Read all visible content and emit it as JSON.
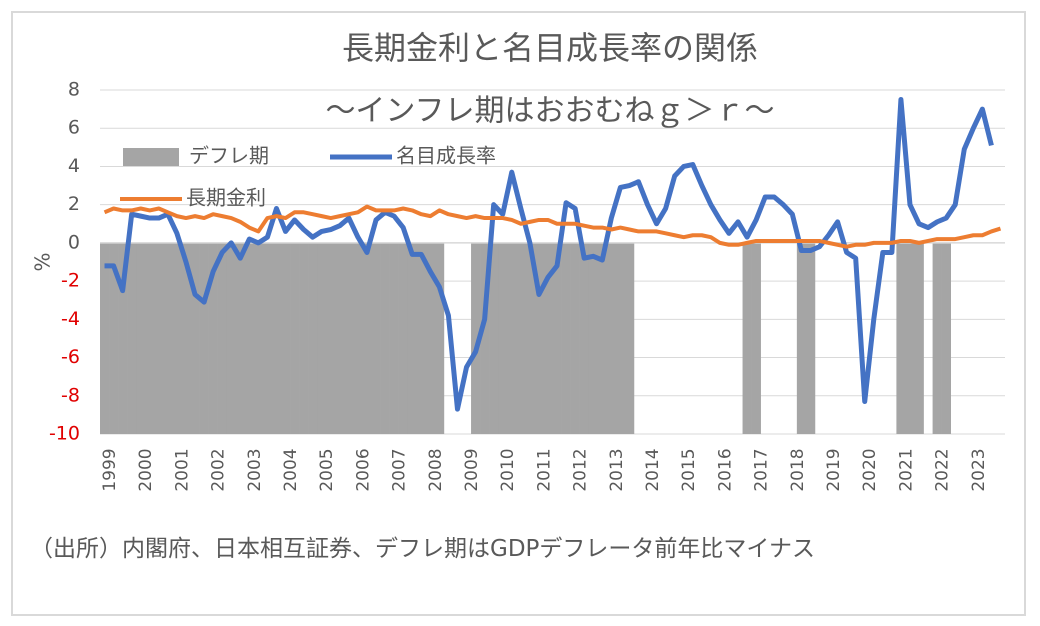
{
  "chart_data": {
    "type": "bar_line",
    "title": "長期金利と名目成長率の関係",
    "subtitle": "～インフレ期はおおむねｇ＞ｒ～",
    "y_label": "%",
    "note": "（出所）内閣府、日本相互証券、デフレ期はGDPデフレータ前年比マイナス",
    "categories": [
      "1999",
      null,
      null,
      null,
      "2000",
      null,
      null,
      null,
      "2001",
      null,
      null,
      null,
      "2002",
      null,
      null,
      null,
      "2003",
      null,
      null,
      null,
      "2004",
      null,
      null,
      null,
      "2005",
      null,
      null,
      null,
      "2006",
      null,
      null,
      null,
      "2007",
      null,
      null,
      null,
      "2008",
      null,
      null,
      null,
      "2009",
      null,
      null,
      null,
      "2010",
      null,
      null,
      null,
      "2011",
      null,
      null,
      null,
      "2012",
      null,
      null,
      null,
      "2013",
      null,
      null,
      null,
      "2014",
      null,
      null,
      null,
      "2015",
      null,
      null,
      null,
      "2016",
      null,
      null,
      null,
      "2017",
      null,
      null,
      null,
      "2018",
      null,
      null,
      null,
      "2019",
      null,
      null,
      null,
      "2020",
      null,
      null,
      null,
      "2021",
      null,
      null,
      null,
      "2022",
      null,
      null,
      null,
      "2023",
      null,
      null,
      null
    ],
    "series": [
      {
        "name": "デフレ期",
        "type": "bar",
        "color": "#a5a5a5",
        "values": [
          -10,
          -10,
          -10,
          -10,
          -10,
          -10,
          -10,
          -10,
          -10,
          -10,
          -10,
          -10,
          -10,
          -10,
          -10,
          -10,
          -10,
          -10,
          -10,
          -10,
          -10,
          -10,
          -10,
          -10,
          -10,
          -10,
          -10,
          -10,
          -10,
          -10,
          -10,
          -10,
          -10,
          -10,
          -10,
          -10,
          -10,
          -10,
          null,
          null,
          null,
          -10,
          -10,
          -10,
          -10,
          -10,
          -10,
          -10,
          -10,
          -10,
          -10,
          -10,
          -10,
          -10,
          -10,
          -10,
          -10,
          -10,
          -10,
          null,
          null,
          null,
          null,
          null,
          null,
          null,
          null,
          null,
          null,
          null,
          null,
          -10,
          -10,
          null,
          null,
          null,
          null,
          -10,
          -10,
          null,
          null,
          null,
          null,
          null,
          null,
          null,
          null,
          null,
          -10,
          -10,
          -10,
          null,
          -10,
          -10,
          null,
          null,
          null,
          null,
          null,
          null
        ]
      },
      {
        "name": "名目成長率",
        "type": "line",
        "color": "#4472c4",
        "width": 5,
        "values": [
          -1.2,
          -1.2,
          -2.5,
          1.5,
          1.4,
          1.3,
          1.3,
          1.5,
          0.5,
          -1.0,
          -2.7,
          -3.1,
          -1.5,
          -0.5,
          0.0,
          -0.8,
          0.2,
          0.0,
          0.3,
          1.8,
          0.6,
          1.2,
          0.7,
          0.3,
          0.6,
          0.7,
          0.9,
          1.3,
          0.3,
          -0.5,
          1.2,
          1.6,
          1.4,
          0.8,
          -0.6,
          -0.6,
          -1.5,
          -2.3,
          -3.8,
          -8.7,
          -6.5,
          -5.7,
          -4.0,
          2.0,
          1.5,
          3.7,
          1.8,
          0.0,
          -2.7,
          -1.8,
          -1.2,
          2.1,
          1.8,
          -0.8,
          -0.7,
          -0.9,
          1.3,
          2.9,
          3.0,
          3.2,
          2.0,
          1.0,
          1.8,
          3.5,
          4.0,
          4.1,
          3.0,
          2.0,
          1.2,
          0.5,
          1.1,
          0.3,
          1.2,
          2.4,
          2.4,
          2.0,
          1.5,
          -0.4,
          -0.4,
          -0.2,
          0.4,
          1.1,
          -0.5,
          -0.8,
          -8.3,
          -4.0,
          -0.5,
          -0.5,
          7.5,
          2.0,
          1.0,
          0.8,
          1.1,
          1.3,
          2.0,
          4.9,
          6.0,
          7.0,
          5.1,
          null
        ]
      },
      {
        "name": "長期金利",
        "type": "line",
        "color": "#ed7d31",
        "width": 4,
        "values": [
          1.6,
          1.8,
          1.7,
          1.7,
          1.8,
          1.7,
          1.8,
          1.6,
          1.4,
          1.3,
          1.4,
          1.3,
          1.5,
          1.4,
          1.3,
          1.1,
          0.8,
          0.6,
          1.3,
          1.4,
          1.3,
          1.6,
          1.6,
          1.5,
          1.4,
          1.3,
          1.4,
          1.5,
          1.6,
          1.9,
          1.7,
          1.7,
          1.7,
          1.8,
          1.7,
          1.5,
          1.4,
          1.7,
          1.5,
          1.4,
          1.3,
          1.4,
          1.3,
          1.3,
          1.3,
          1.2,
          1.0,
          1.1,
          1.2,
          1.2,
          1.0,
          1.0,
          1.0,
          0.9,
          0.8,
          0.8,
          0.7,
          0.8,
          0.7,
          0.6,
          0.6,
          0.6,
          0.5,
          0.4,
          0.3,
          0.4,
          0.4,
          0.3,
          0.0,
          -0.1,
          -0.1,
          0.0,
          0.1,
          0.1,
          0.1,
          0.1,
          0.1,
          0.1,
          0.1,
          0.1,
          0.0,
          -0.1,
          -0.2,
          -0.1,
          -0.1,
          0.0,
          0.0,
          0.0,
          0.1,
          0.1,
          0.0,
          0.1,
          0.2,
          0.2,
          0.2,
          0.3,
          0.4,
          0.4,
          0.6,
          0.75
        ]
      }
    ],
    "ylim": [
      -10,
      8
    ],
    "yticks": [
      -10,
      -8,
      -6,
      -4,
      -2,
      0,
      2,
      4,
      6,
      8
    ],
    "negative_tick_color": "#e00000",
    "grid": true,
    "legend": "upper left"
  }
}
